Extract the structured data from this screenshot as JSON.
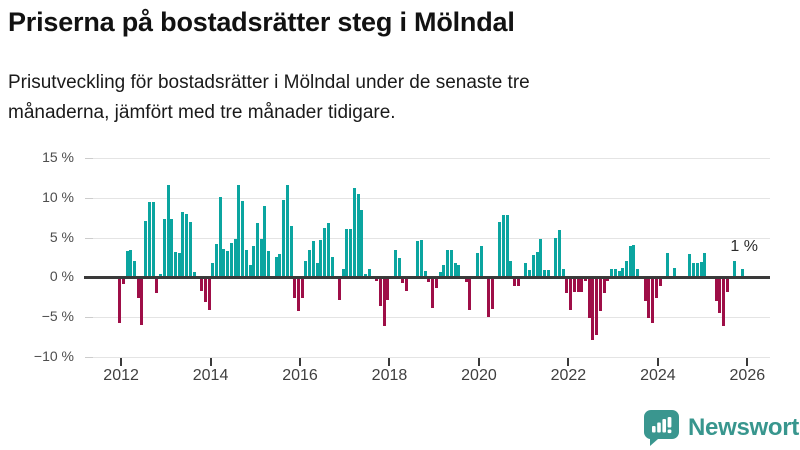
{
  "header": {
    "title": "Priserna på bostadsrätter steg i Mölndal",
    "subtitle": "Prisutveckling för bostadsrätter i Mölndal under de senaste tre månaderna, jämfört med tre månader tidigare."
  },
  "logo": {
    "text": "Newsworthy",
    "icon": "newsworthy-speech-bubble-chart-icon",
    "color": "#3a968f"
  },
  "colors": {
    "positive_bar": "#0ba5a0",
    "negative_bar": "#9e0e47",
    "gridline": "#e4e4e4",
    "zero_axis": "#3a3a3a",
    "axis_text": "#4d4d4d"
  },
  "chart_data": {
    "type": "bar",
    "title": "Priserna på bostadsrätter steg i Mölndal",
    "xlabel": "",
    "ylabel": "",
    "unit": "%",
    "freq": "monthly",
    "start": "2012-01",
    "end": "2025-12",
    "ylim": [
      -10,
      15
    ],
    "grid": true,
    "y_ticks": [
      15,
      10,
      5,
      0,
      -5,
      -10
    ],
    "y_tick_labels": [
      "15 %",
      "10 %",
      "5 %",
      "0 %",
      "−5 %",
      "−10 %"
    ],
    "x_tick_labels": [
      "2012",
      "2014",
      "2016",
      "2018",
      "2020",
      "2022",
      "2024",
      "2026"
    ],
    "annotation": {
      "text": "1 %",
      "month_index": 167
    },
    "values": [
      -5.7,
      -0.9,
      3.3,
      3.4,
      2.0,
      -2.6,
      -6.0,
      7.1,
      9.5,
      9.5,
      -2.0,
      0.4,
      7.3,
      11.6,
      7.4,
      3.2,
      3.0,
      8.2,
      8.0,
      7.0,
      0.7,
      0,
      -1.7,
      -3.1,
      -4.1,
      1.8,
      4.2,
      10.1,
      3.6,
      3.3,
      4.3,
      4.8,
      11.6,
      9.6,
      3.4,
      1.6,
      3.9,
      6.9,
      4.8,
      9.0,
      3.3,
      0,
      2.5,
      2.9,
      9.7,
      11.6,
      6.4,
      -2.6,
      -4.3,
      -2.6,
      2.1,
      3.5,
      4.6,
      1.8,
      4.7,
      6.2,
      6.8,
      2.5,
      0,
      -2.8,
      1.1,
      6.1,
      6.1,
      11.2,
      10.5,
      8.5,
      0.4,
      1.0,
      0,
      -0.5,
      -3.6,
      -6.1,
      -2.9,
      0,
      3.4,
      2.4,
      -0.7,
      -1.7,
      0,
      0,
      4.6,
      4.7,
      0.8,
      -0.6,
      -3.9,
      -1.3,
      0.7,
      1.6,
      3.4,
      3.5,
      1.8,
      1.6,
      0,
      -0.6,
      -4.1,
      0,
      3.0,
      3.9,
      0,
      -5.0,
      -4.0,
      0,
      7.0,
      7.9,
      7.9,
      2.0,
      -1.1,
      -1.1,
      0,
      1.8,
      0.9,
      2.8,
      3.2,
      4.8,
      0.9,
      0.9,
      0,
      4.9,
      6.0,
      1.1,
      -2.0,
      -4.1,
      -1.9,
      -1.8,
      -1.9,
      -0.5,
      -5.1,
      -7.9,
      -7.3,
      -4.2,
      -2.0,
      -0.5,
      1.0,
      1.0,
      0.8,
      1.2,
      2.0,
      3.9,
      4.1,
      1.0,
      0,
      -3.0,
      -5.1,
      -5.8,
      -2.6,
      -1.1,
      0,
      3.0,
      0,
      1.2,
      0,
      0,
      0,
      2.9,
      1.8,
      1.8,
      1.9,
      3.0,
      0,
      0,
      -3.0,
      -4.5,
      -6.1,
      -1.8,
      0,
      2.0,
      0,
      1.0
    ]
  }
}
